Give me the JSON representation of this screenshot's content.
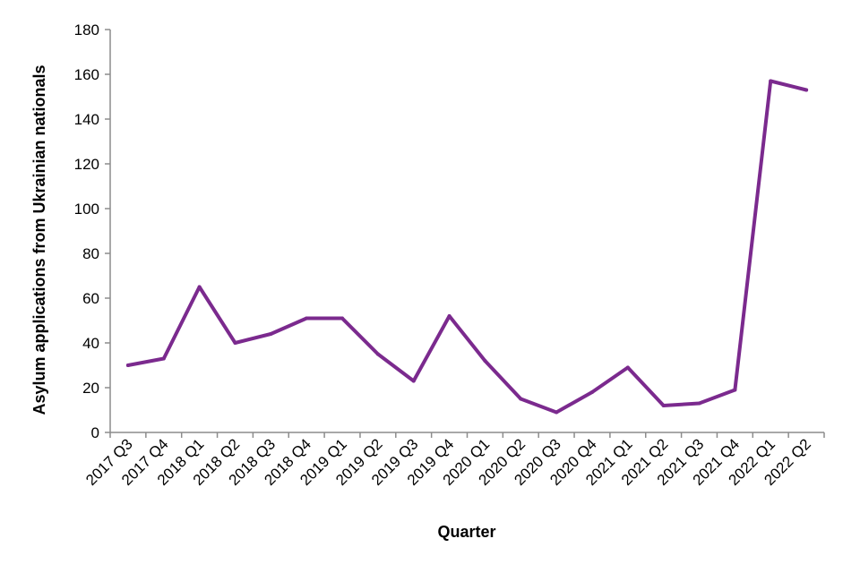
{
  "chart_data": {
    "type": "line",
    "title": "",
    "xlabel": "Quarter",
    "ylabel": "Asylum applications from Ukrainian nationals",
    "categories": [
      "2017 Q3",
      "2017 Q4",
      "2018 Q1",
      "2018 Q2",
      "2018 Q3",
      "2018 Q4",
      "2019 Q1",
      "2019 Q2",
      "2019 Q3",
      "2019 Q4",
      "2020 Q1",
      "2020 Q2",
      "2020 Q3",
      "2020 Q4",
      "2021 Q1",
      "2021 Q2",
      "2021 Q3",
      "2021 Q4",
      "2022 Q1",
      "2022 Q2"
    ],
    "series": [
      {
        "values": [
          30,
          33,
          65,
          40,
          44,
          51,
          51,
          35,
          23,
          52,
          32,
          15,
          9,
          18,
          29,
          12,
          13,
          19,
          157,
          153
        ],
        "color": "#7b2a8e"
      }
    ],
    "ylim": [
      0,
      180
    ],
    "yticks": [
      0,
      20,
      40,
      60,
      80,
      100,
      120,
      140,
      160,
      180
    ],
    "grid": false,
    "legend": "none"
  }
}
